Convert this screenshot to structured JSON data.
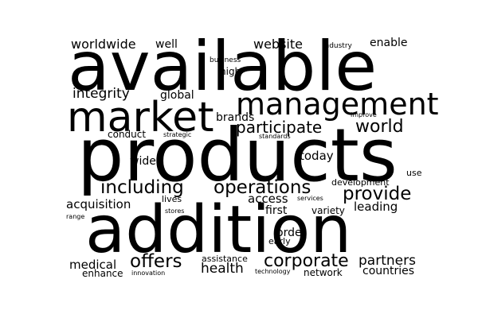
{
  "text_color": "#000000",
  "background_color": "#ffffff",
  "words": [
    "available",
    "products",
    "addition",
    "market",
    "management",
    "including",
    "operations",
    "provide",
    "world",
    "participate",
    "corporate",
    "offers",
    "partners",
    "integrity",
    "worldwide",
    "website",
    "enable",
    "acquisition",
    "medical",
    "health",
    "countries",
    "access",
    "today",
    "leading",
    "brands",
    "global",
    "first",
    "order",
    "well",
    "wide",
    "conduct",
    "variety",
    "early",
    "network",
    "enhance",
    "development",
    "assistance",
    "high",
    "use",
    "lives",
    "industry",
    "business",
    "improve",
    "strategic",
    "standards",
    "services",
    "stores",
    "range",
    "innovation",
    "technology"
  ]
}
